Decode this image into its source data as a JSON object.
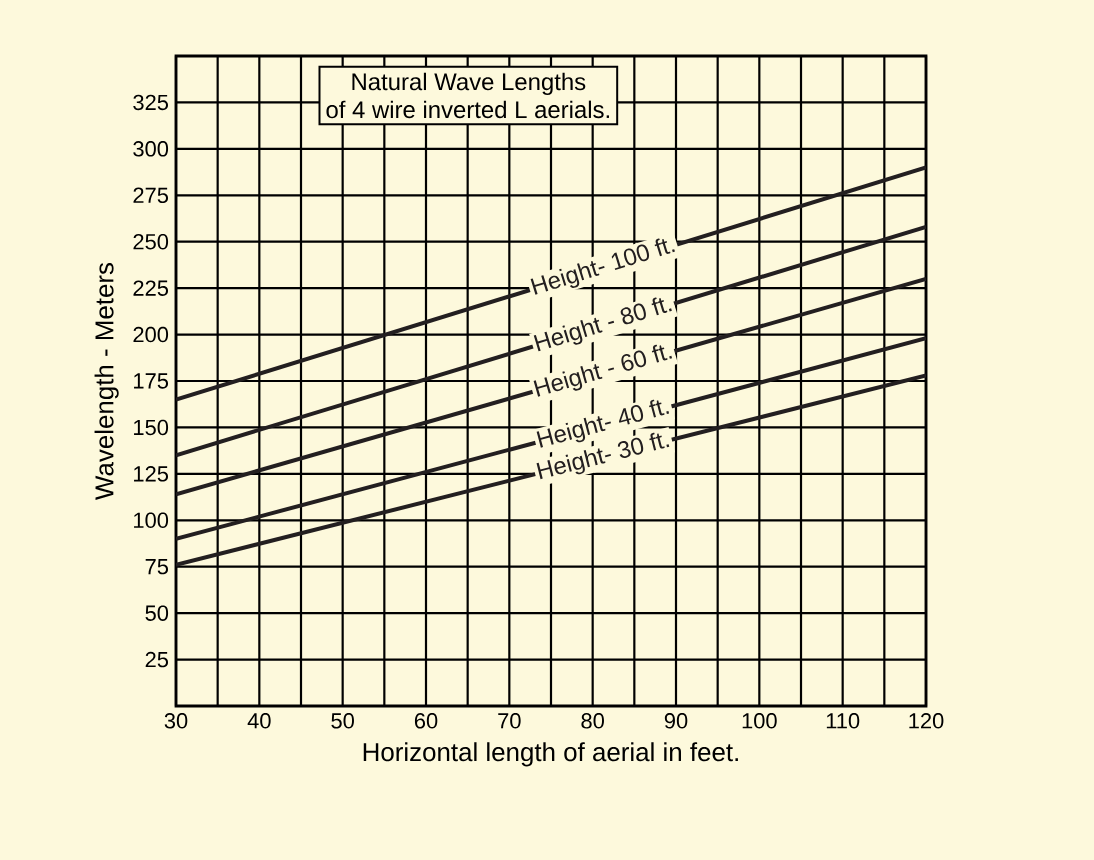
{
  "chart_data": {
    "type": "line",
    "title": "Natural Wave Lengths",
    "subtitle": "of 4 wire inverted L aerials.",
    "xlabel": "Horizontal length of aerial in feet.",
    "ylabel": "Wavelength - Meters",
    "x": [
      30,
      120
    ],
    "series": [
      {
        "name": "Height- 100 ft.",
        "color": "#231f20",
        "values": [
          165,
          290
        ]
      },
      {
        "name": "Height - 80 ft.",
        "color": "#231f20",
        "values": [
          135,
          258
        ]
      },
      {
        "name": "Height - 60 ft.",
        "color": "#231f20",
        "values": [
          114,
          230
        ]
      },
      {
        "name": "Height- 40 ft.",
        "color": "#231f20",
        "values": [
          90,
          198
        ]
      },
      {
        "name": "Height- 30 ft.",
        "color": "#231f20",
        "values": [
          76,
          178
        ]
      }
    ],
    "xlim": [
      30,
      120
    ],
    "ylim": [
      0,
      350
    ],
    "xticks": [
      30,
      {
        "value": 35,
        "label": null
      },
      40,
      {
        "value": 45,
        "label": null
      },
      50,
      {
        "value": 55,
        "label": null
      },
      60,
      {
        "value": 65,
        "label": null
      },
      70,
      {
        "value": 75,
        "label": null
      },
      80,
      {
        "value": 85,
        "label": null
      },
      90,
      {
        "value": 95,
        "label": null
      },
      100,
      {
        "value": 105,
        "label": null
      },
      110,
      {
        "value": 115,
        "label": null
      },
      120
    ],
    "yticks": [
      25,
      50,
      75,
      100,
      125,
      150,
      175,
      200,
      225,
      250,
      275,
      300,
      325,
      {
        "value": 350,
        "label": null
      }
    ],
    "grid": true,
    "marker": "none",
    "line_style": "solid"
  }
}
